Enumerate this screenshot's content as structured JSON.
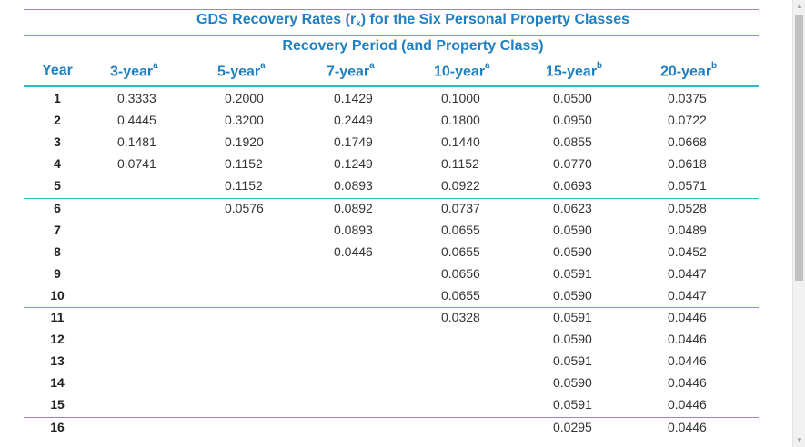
{
  "table": {
    "title_pre": "GDS Recovery Rates (r",
    "title_sub": "k",
    "title_post": ") for the Six Personal Property Classes",
    "subtitle": "Recovery Period (and Property Class)",
    "year_header": "Year",
    "columns": [
      {
        "label": "3-year",
        "note": "a"
      },
      {
        "label": "5-year",
        "note": "a"
      },
      {
        "label": "7-year",
        "note": "a"
      },
      {
        "label": "10-year",
        "note": "a"
      },
      {
        "label": "15-year",
        "note": "b"
      },
      {
        "label": "20-year",
        "note": "b"
      }
    ],
    "years": [
      "1",
      "2",
      "3",
      "4",
      "5",
      "6",
      "7",
      "8",
      "9",
      "10",
      "11",
      "12",
      "13",
      "14",
      "15",
      "16"
    ],
    "rates": [
      [
        "0.3333",
        "0.4445",
        "0.1481",
        "0.0741"
      ],
      [
        "0.2000",
        "0.3200",
        "0.1920",
        "0.1152",
        "0.1152",
        "0.0576"
      ],
      [
        "0.1429",
        "0.2449",
        "0.1749",
        "0.1249",
        "0.0893",
        "0.0892",
        "0.0893",
        "0.0446"
      ],
      [
        "0.1000",
        "0.1800",
        "0.1440",
        "0.1152",
        "0.0922",
        "0.0737",
        "0.0655",
        "0.0655",
        "0.0656",
        "0.0655",
        "0.0328"
      ],
      [
        "0.0500",
        "0.0950",
        "0.0855",
        "0.0770",
        "0.0693",
        "0.0623",
        "0.0590",
        "0.0590",
        "0.0591",
        "0.0590",
        "0.0591",
        "0.0590",
        "0.0591",
        "0.0590",
        "0.0591",
        "0.0295"
      ],
      [
        "0.0375",
        "0.0722",
        "0.0668",
        "0.0618",
        "0.0571",
        "0.0528",
        "0.0489",
        "0.0452",
        "0.0447",
        "0.0447",
        "0.0446",
        "0.0446",
        "0.0446",
        "0.0446",
        "0.0446",
        "0.0446"
      ]
    ]
  },
  "scrollbar": {
    "up_icon": "triangle-up",
    "down_icon": "triangle-down",
    "position": 0.55
  }
}
